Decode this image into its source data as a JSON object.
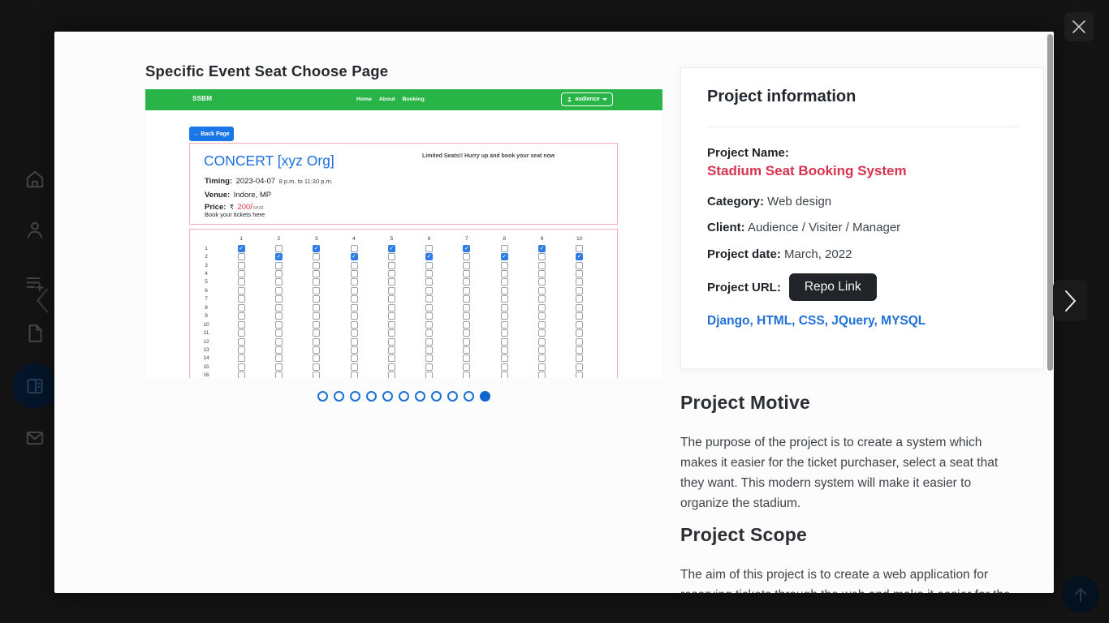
{
  "colors": {
    "navbar_green": "#28b446",
    "primary_blue": "#1b76e8",
    "event_title_blue": "#1d6ee0",
    "danger_red": "#dc3545",
    "project_name_red": "#d63350",
    "tech_blue": "#2170d6",
    "repo_button_dark": "#212529",
    "card_border_pink": "#f3adb5",
    "backdrop_dark": "#141414"
  },
  "sidebar": {
    "icons": [
      "home",
      "user",
      "playlist-add",
      "document",
      "portfolio-grid",
      "mail"
    ],
    "active_icon": "portfolio-grid"
  },
  "controls": {
    "prev": "chevron-left",
    "next": "chevron-right",
    "close": "close-x",
    "scroll_top": "arrow-up"
  },
  "lightbox": {
    "title": "Specific Event Seat Choose Page",
    "carousel": {
      "count": 11,
      "active_dot": 11
    },
    "screenshot": {
      "navbar": {
        "brand": "SSBM",
        "links": [
          "Home",
          "About",
          "Booking"
        ],
        "user_menu": {
          "label": "audience"
        }
      },
      "back_button": {
        "icon": "←",
        "label": "Back Page"
      },
      "event_card": {
        "title": "CONCERT [xyz Org]",
        "banner": "Limited Seats!! Hurry up and book your seat now",
        "timing_label": "Timing:",
        "timing_value": "2023-04-07",
        "timing_hours": "8 p.m. to 11:30 p.m.",
        "venue_label": "Venue:",
        "venue_value": "Indore, MP",
        "price_label": "Price:",
        "currency": "₹",
        "price": "200",
        "per": "/",
        "unit": "seat",
        "note": "Book your tickets here"
      },
      "seat_grid": {
        "columns": [
          1,
          2,
          3,
          4,
          5,
          6,
          7,
          8,
          9,
          10
        ],
        "visible_rows": 16,
        "checked": {
          "1": [
            1,
            3,
            5,
            7,
            9
          ],
          "2": [
            2,
            4,
            6,
            8,
            10
          ]
        }
      }
    },
    "info_card": {
      "heading": "Project information",
      "name_label": "Project Name:",
      "name_value": "Stadium Seat Booking System",
      "category_label": "Category:",
      "category_value": " Web design",
      "client_label": "Client:",
      "client_value": " Audience / Visiter / Manager",
      "date_label": "Project date:",
      "date_value": " March, 2022",
      "url_label": "Project URL:",
      "repo_button": "Repo Link",
      "tech_stack": "Django, HTML, CSS, JQuery, MYSQL"
    },
    "sections": [
      {
        "heading": "Project Motive",
        "lines": [
          "The purpose of the project is to create a system which",
          "makes it easier for the ticket purchaser, select a seat that",
          "they want. This modern system will make it easier to",
          "organize the stadium."
        ]
      },
      {
        "heading": "Project Scope",
        "lines": [
          "The aim of this project is to create a web application for",
          "reserving tickets through the web and make it easier for the"
        ]
      }
    ]
  }
}
